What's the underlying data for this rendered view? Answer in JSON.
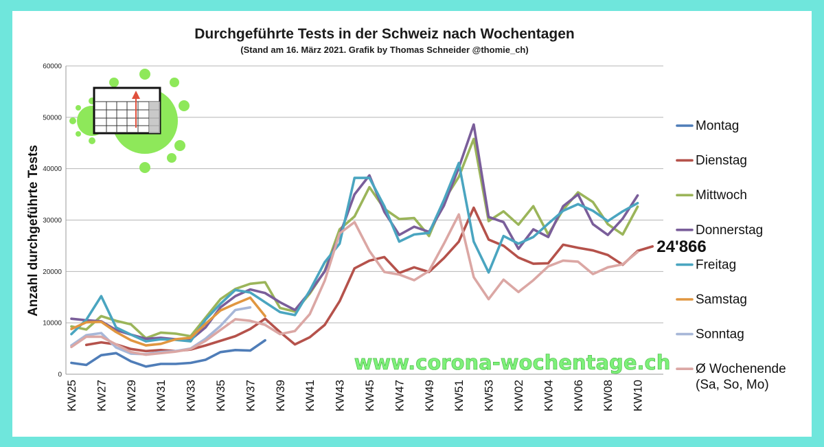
{
  "chart_data": {
    "type": "line",
    "title": "Durchgeführte Tests in der Schweiz nach Wochentagen",
    "subtitle": "(Stand am 16. März 2021. Grafik by Thomas Schneider @thomie_ch)",
    "xlabel": "",
    "ylabel": "Anzahl durchgeführte Tests",
    "ylim": [
      0,
      60000
    ],
    "yticks": [
      "0",
      "10000",
      "20000",
      "30000",
      "40000",
      "50000",
      "60000"
    ],
    "ytick_values": [
      0,
      10000,
      20000,
      30000,
      40000,
      50000,
      60000
    ],
    "x": [
      "KW25",
      "KW26",
      "KW27",
      "KW28",
      "KW29",
      "KW30",
      "KW31",
      "KW32",
      "KW33",
      "KW34",
      "KW35",
      "KW36",
      "KW37",
      "KW38",
      "KW39",
      "KW40",
      "KW41",
      "KW42",
      "KW43",
      "KW44",
      "KW45",
      "KW46",
      "KW47",
      "KW48",
      "KW49",
      "KW50",
      "KW51",
      "KW52",
      "KW53",
      "KW01",
      "KW02",
      "KW03",
      "KW04",
      "KW05",
      "KW06",
      "KW07",
      "KW08",
      "KW09",
      "KW10",
      "KW11"
    ],
    "xtick_labels": [
      "KW25",
      "KW27",
      "KW29",
      "KW31",
      "KW33",
      "KW35",
      "KW37",
      "KW39",
      "KW41",
      "KW43",
      "KW45",
      "KW47",
      "KW49",
      "KW51",
      "KW53",
      "KW02",
      "KW04",
      "KW06",
      "KW08",
      "KW10"
    ],
    "xtick_indices": [
      0,
      2,
      4,
      6,
      8,
      10,
      12,
      14,
      16,
      18,
      20,
      22,
      24,
      26,
      28,
      30,
      32,
      34,
      36,
      38
    ],
    "grid": true,
    "legend_position": "right",
    "series": [
      {
        "name": "Montag",
        "color": "#4f7db8",
        "values": [
          2200,
          1800,
          3700,
          4100,
          2500,
          1500,
          2000,
          2000,
          2200,
          2800,
          4300,
          4700,
          4600,
          6600,
          null,
          null,
          null,
          null,
          null,
          null,
          null,
          null,
          null,
          null,
          null,
          null,
          null,
          null,
          null,
          null,
          null,
          null,
          null,
          null,
          null,
          null,
          null,
          null,
          null,
          null
        ]
      },
      {
        "name": "Dienstag",
        "color": "#b5524b",
        "values": [
          null,
          5700,
          6200,
          5800,
          4900,
          4500,
          4700,
          4500,
          4800,
          5600,
          6500,
          7400,
          8800,
          10800,
          8200,
          5800,
          7200,
          9600,
          14200,
          20600,
          22100,
          22800,
          19700,
          20800,
          19900,
          22600,
          25800,
          32400,
          26200,
          25000,
          22700,
          21500,
          21600,
          25200,
          24600,
          24100,
          23200,
          21300,
          24000,
          24866
        ]
      },
      {
        "name": "Mittwoch",
        "color": "#9bb55a",
        "values": [
          9300,
          8700,
          11300,
          10400,
          9700,
          7000,
          8100,
          7900,
          7400,
          11000,
          14600,
          16600,
          17600,
          17900,
          12900,
          12200,
          15700,
          20100,
          28200,
          30700,
          36400,
          32200,
          30200,
          30400,
          26900,
          33800,
          38400,
          45800,
          29800,
          31700,
          29100,
          32700,
          27200,
          32000,
          35400,
          33500,
          29200,
          27200,
          32600,
          null
        ]
      },
      {
        "name": "Donnerstag",
        "color": "#7a5e9a",
        "values": [
          10800,
          10500,
          10300,
          8600,
          7700,
          6900,
          7100,
          6800,
          6700,
          9100,
          13000,
          15200,
          16500,
          15800,
          14000,
          12500,
          16000,
          20000,
          27100,
          35000,
          38700,
          31600,
          27100,
          28700,
          27700,
          32800,
          40200,
          48600,
          30600,
          29600,
          24400,
          28200,
          26700,
          32700,
          35000,
          29200,
          27100,
          30300,
          34800,
          null
        ]
      },
      {
        "name": "Freitag",
        "color": "#4aa5c0",
        "values": [
          7800,
          10600,
          15200,
          9100,
          7700,
          6400,
          6800,
          6700,
          6400,
          10600,
          13700,
          16400,
          15900,
          14000,
          12100,
          11500,
          16300,
          21800,
          25400,
          38200,
          38200,
          32700,
          25800,
          27200,
          27500,
          33900,
          41100,
          25800,
          19800,
          26900,
          25400,
          26700,
          29300,
          31800,
          33100,
          31800,
          29800,
          31700,
          33300,
          null
        ]
      },
      {
        "name": "Samstag",
        "color": "#e09640",
        "values": [
          8800,
          10100,
          10200,
          8200,
          6600,
          5600,
          5900,
          6800,
          7100,
          9800,
          12400,
          13700,
          14900,
          11300,
          null,
          null,
          null,
          null,
          null,
          null,
          null,
          null,
          null,
          null,
          null,
          null,
          null,
          null,
          null,
          null,
          null,
          null,
          null,
          null,
          null,
          null,
          null,
          null,
          null,
          null
        ]
      },
      {
        "name": "Sonntag",
        "color": "#a7b7d8",
        "values": [
          5600,
          7600,
          8000,
          5200,
          4000,
          3900,
          4300,
          4500,
          5000,
          6900,
          9400,
          12500,
          13000,
          null,
          null,
          null,
          null,
          null,
          null,
          null,
          null,
          null,
          null,
          null,
          null,
          null,
          null,
          null,
          null,
          null,
          null,
          null,
          null,
          null,
          null,
          null,
          null,
          null,
          null,
          null
        ]
      },
      {
        "name": "Ø Wochenende\n(Sa, So, Mo)",
        "name_lines": [
          "Ø Wochenende",
          "(Sa, So, Mo)"
        ],
        "color": "#dba7a4",
        "values": [
          5300,
          7300,
          7300,
          5800,
          4300,
          3800,
          4100,
          4400,
          4900,
          6500,
          8600,
          10700,
          10400,
          9600,
          7800,
          8400,
          11700,
          18200,
          27400,
          29600,
          24000,
          19900,
          19400,
          18300,
          20100,
          25400,
          31100,
          18900,
          14600,
          18400,
          16000,
          18300,
          21000,
          22100,
          21900,
          19500,
          20800,
          21400,
          23800,
          null
        ]
      }
    ],
    "annotations": [
      {
        "text": "24'866",
        "series": "Dienstag",
        "x": "KW11",
        "y": 24866
      }
    ],
    "watermark": "www.corona-wochentage.ch"
  }
}
